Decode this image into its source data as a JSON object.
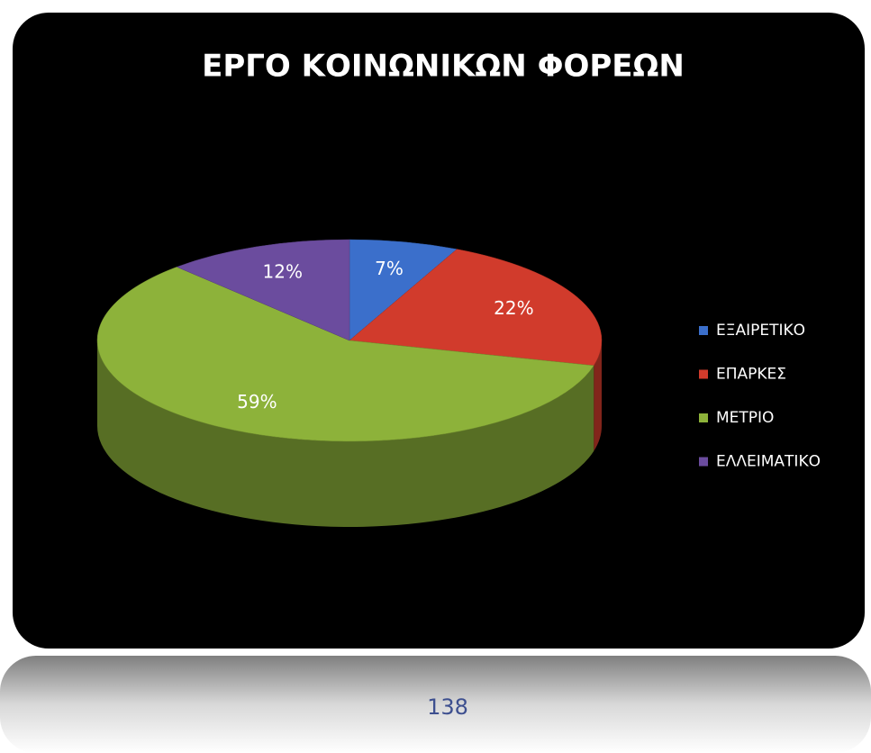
{
  "chart_data": {
    "type": "pie",
    "title": "ΕΡΓΟ ΚΟΙΝΩΝΙΚΩΝ ΦΟΡΕΩΝ",
    "categories": [
      "ΕΞΑΙΡΕΤΙΚΟ",
      "ΕΠΑΡΚΕΣ",
      "ΜΕΤΡΙΟ",
      "ΕΛΛΕΙΜΑΤΙΚΟ"
    ],
    "values": [
      7,
      22,
      59,
      12
    ],
    "value_labels": [
      "7%",
      "22%",
      "59%",
      "12%"
    ],
    "colors": [
      "#3b6fcb",
      "#d13b2c",
      "#8db23a",
      "#6b4c9e"
    ],
    "legend": "right"
  },
  "page_number": 138
}
